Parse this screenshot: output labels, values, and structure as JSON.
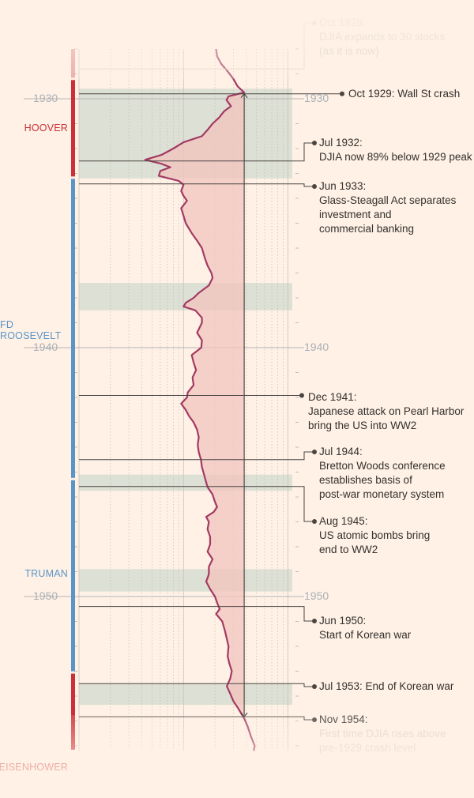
{
  "chart_data": {
    "type": "line",
    "orientation": "vertical-time",
    "title": "",
    "ylabel": "",
    "year_ticks": [
      {
        "year": 1930,
        "left_label": "1930",
        "right_label": "1930"
      },
      {
        "year": 1940,
        "left_label": "1940",
        "right_label": "1940"
      },
      {
        "year": 1950,
        "left_label": "1950",
        "right_label": "1950"
      }
    ],
    "time_range": [
      1928.0,
      1956.2
    ],
    "djia_peak_1929": 381,
    "series": [
      {
        "name": "DJIA",
        "points": [
          [
            1928.0,
            205
          ],
          [
            1928.3,
            210
          ],
          [
            1928.6,
            230
          ],
          [
            1928.9,
            265
          ],
          [
            1929.2,
            300
          ],
          [
            1929.5,
            330
          ],
          [
            1929.75,
            381
          ],
          [
            1929.9,
            270
          ],
          [
            1930.05,
            258
          ],
          [
            1930.3,
            285
          ],
          [
            1930.5,
            245
          ],
          [
            1930.75,
            220
          ],
          [
            1931.0,
            190
          ],
          [
            1931.25,
            170
          ],
          [
            1931.5,
            150
          ],
          [
            1931.75,
            100
          ],
          [
            1932.0,
            80
          ],
          [
            1932.25,
            62
          ],
          [
            1932.45,
            43
          ],
          [
            1932.6,
            60
          ],
          [
            1932.75,
            75
          ],
          [
            1932.9,
            60
          ],
          [
            1933.1,
            58
          ],
          [
            1933.3,
            90
          ],
          [
            1933.45,
            100
          ],
          [
            1933.7,
            95
          ],
          [
            1933.9,
            100
          ],
          [
            1934.1,
            108
          ],
          [
            1934.4,
            95
          ],
          [
            1934.7,
            100
          ],
          [
            1935.0,
            105
          ],
          [
            1935.4,
            120
          ],
          [
            1935.7,
            135
          ],
          [
            1936.0,
            150
          ],
          [
            1936.4,
            160
          ],
          [
            1936.7,
            170
          ],
          [
            1937.0,
            185
          ],
          [
            1937.2,
            190
          ],
          [
            1937.5,
            175
          ],
          [
            1937.8,
            140
          ],
          [
            1938.0,
            125
          ],
          [
            1938.2,
            105
          ],
          [
            1938.35,
            100
          ],
          [
            1938.5,
            130
          ],
          [
            1938.8,
            150
          ],
          [
            1939.0,
            150
          ],
          [
            1939.4,
            135
          ],
          [
            1939.7,
            150
          ],
          [
            1940.0,
            148
          ],
          [
            1940.3,
            120
          ],
          [
            1940.6,
            125
          ],
          [
            1940.9,
            132
          ],
          [
            1941.2,
            122
          ],
          [
            1941.5,
            125
          ],
          [
            1941.8,
            110
          ],
          [
            1942.0,
            108
          ],
          [
            1942.25,
            95
          ],
          [
            1942.5,
            105
          ],
          [
            1942.75,
            113
          ],
          [
            1943.0,
            125
          ],
          [
            1943.3,
            135
          ],
          [
            1943.6,
            140
          ],
          [
            1943.9,
            137
          ],
          [
            1944.2,
            140
          ],
          [
            1944.5,
            147
          ],
          [
            1944.8,
            150
          ],
          [
            1945.0,
            155
          ],
          [
            1945.3,
            162
          ],
          [
            1945.6,
            170
          ],
          [
            1945.9,
            190
          ],
          [
            1946.2,
            200
          ],
          [
            1946.4,
            210
          ],
          [
            1946.6,
            195
          ],
          [
            1946.8,
            165
          ],
          [
            1947.0,
            175
          ],
          [
            1947.3,
            170
          ],
          [
            1947.6,
            180
          ],
          [
            1947.9,
            180
          ],
          [
            1948.2,
            170
          ],
          [
            1948.5,
            190
          ],
          [
            1948.8,
            175
          ],
          [
            1949.1,
            175
          ],
          [
            1949.4,
            165
          ],
          [
            1949.7,
            180
          ],
          [
            1950.0,
            200
          ],
          [
            1950.3,
            212
          ],
          [
            1950.5,
            222
          ],
          [
            1950.7,
            205
          ],
          [
            1951.0,
            235
          ],
          [
            1951.4,
            250
          ],
          [
            1951.7,
            260
          ],
          [
            1952.0,
            270
          ],
          [
            1952.4,
            265
          ],
          [
            1952.7,
            275
          ],
          [
            1953.0,
            290
          ],
          [
            1953.3,
            280
          ],
          [
            1953.6,
            260
          ],
          [
            1953.9,
            280
          ],
          [
            1954.2,
            300
          ],
          [
            1954.5,
            335
          ],
          [
            1954.9,
            381
          ],
          [
            1955.2,
            410
          ],
          [
            1955.6,
            440
          ],
          [
            1956.0,
            480
          ],
          [
            1956.2,
            470
          ]
        ]
      }
    ],
    "recessions": [
      [
        1929.6,
        1933.2
      ],
      [
        1937.4,
        1938.5
      ],
      [
        1945.1,
        1945.75
      ],
      [
        1948.9,
        1949.8
      ],
      [
        1953.5,
        1954.35
      ]
    ],
    "annotations": [
      {
        "date": 1928.8,
        "lines": [
          "Oct 1928:",
          "DJIA expands to 30 stocks",
          "(as it is now)"
        ],
        "faded": true
      },
      {
        "date": 1929.8,
        "lines": [
          "Oct 1929: Wall St crash"
        ]
      },
      {
        "date": 1932.5,
        "lines": [
          "Jul 1932:",
          "DJIA now 89% below 1929 peak"
        ]
      },
      {
        "date": 1933.42,
        "lines": [
          "Jun 1933:",
          "Glass-Steagall Act separates",
          "investment and",
          "commercial banking"
        ]
      },
      {
        "date": 1941.92,
        "lines": [
          "Dec 1941:",
          "Japanese attack on Pearl Harbor",
          "bring the US into WW2"
        ]
      },
      {
        "date": 1944.5,
        "lines": [
          "Jul 1944:",
          "Bretton Woods conference",
          "establishes basis of",
          "post-war monetary system"
        ]
      },
      {
        "date": 1945.58,
        "lines": [
          "Aug 1945:",
          "US atomic bombs bring",
          "end to WW2"
        ]
      },
      {
        "date": 1950.4,
        "lines": [
          "Jun 1950:",
          "Start of Korean war"
        ]
      },
      {
        "date": 1953.5,
        "lines": [
          "Jul 1953: End of Korean war"
        ]
      },
      {
        "date": 1954.83,
        "lines": [
          "Nov 1954:",
          "First time DJIA rises above",
          "pre-1929 crash level"
        ]
      }
    ],
    "presidents": [
      {
        "name": "HOOVER",
        "start": 1929.2,
        "end": 1933.17,
        "color": "#cc2f36"
      },
      {
        "name": "FD ROOSEVELT",
        "start": 1933.17,
        "end": 1945.28,
        "color": "#5a95c8"
      },
      {
        "name": "TRUMAN",
        "start": 1945.28,
        "end": 1953.05,
        "color": "#5a95c8"
      },
      {
        "name": "EISENHOWER",
        "start": 1953.05,
        "end": 1956.2,
        "color": "#cc2f36"
      }
    ]
  }
}
